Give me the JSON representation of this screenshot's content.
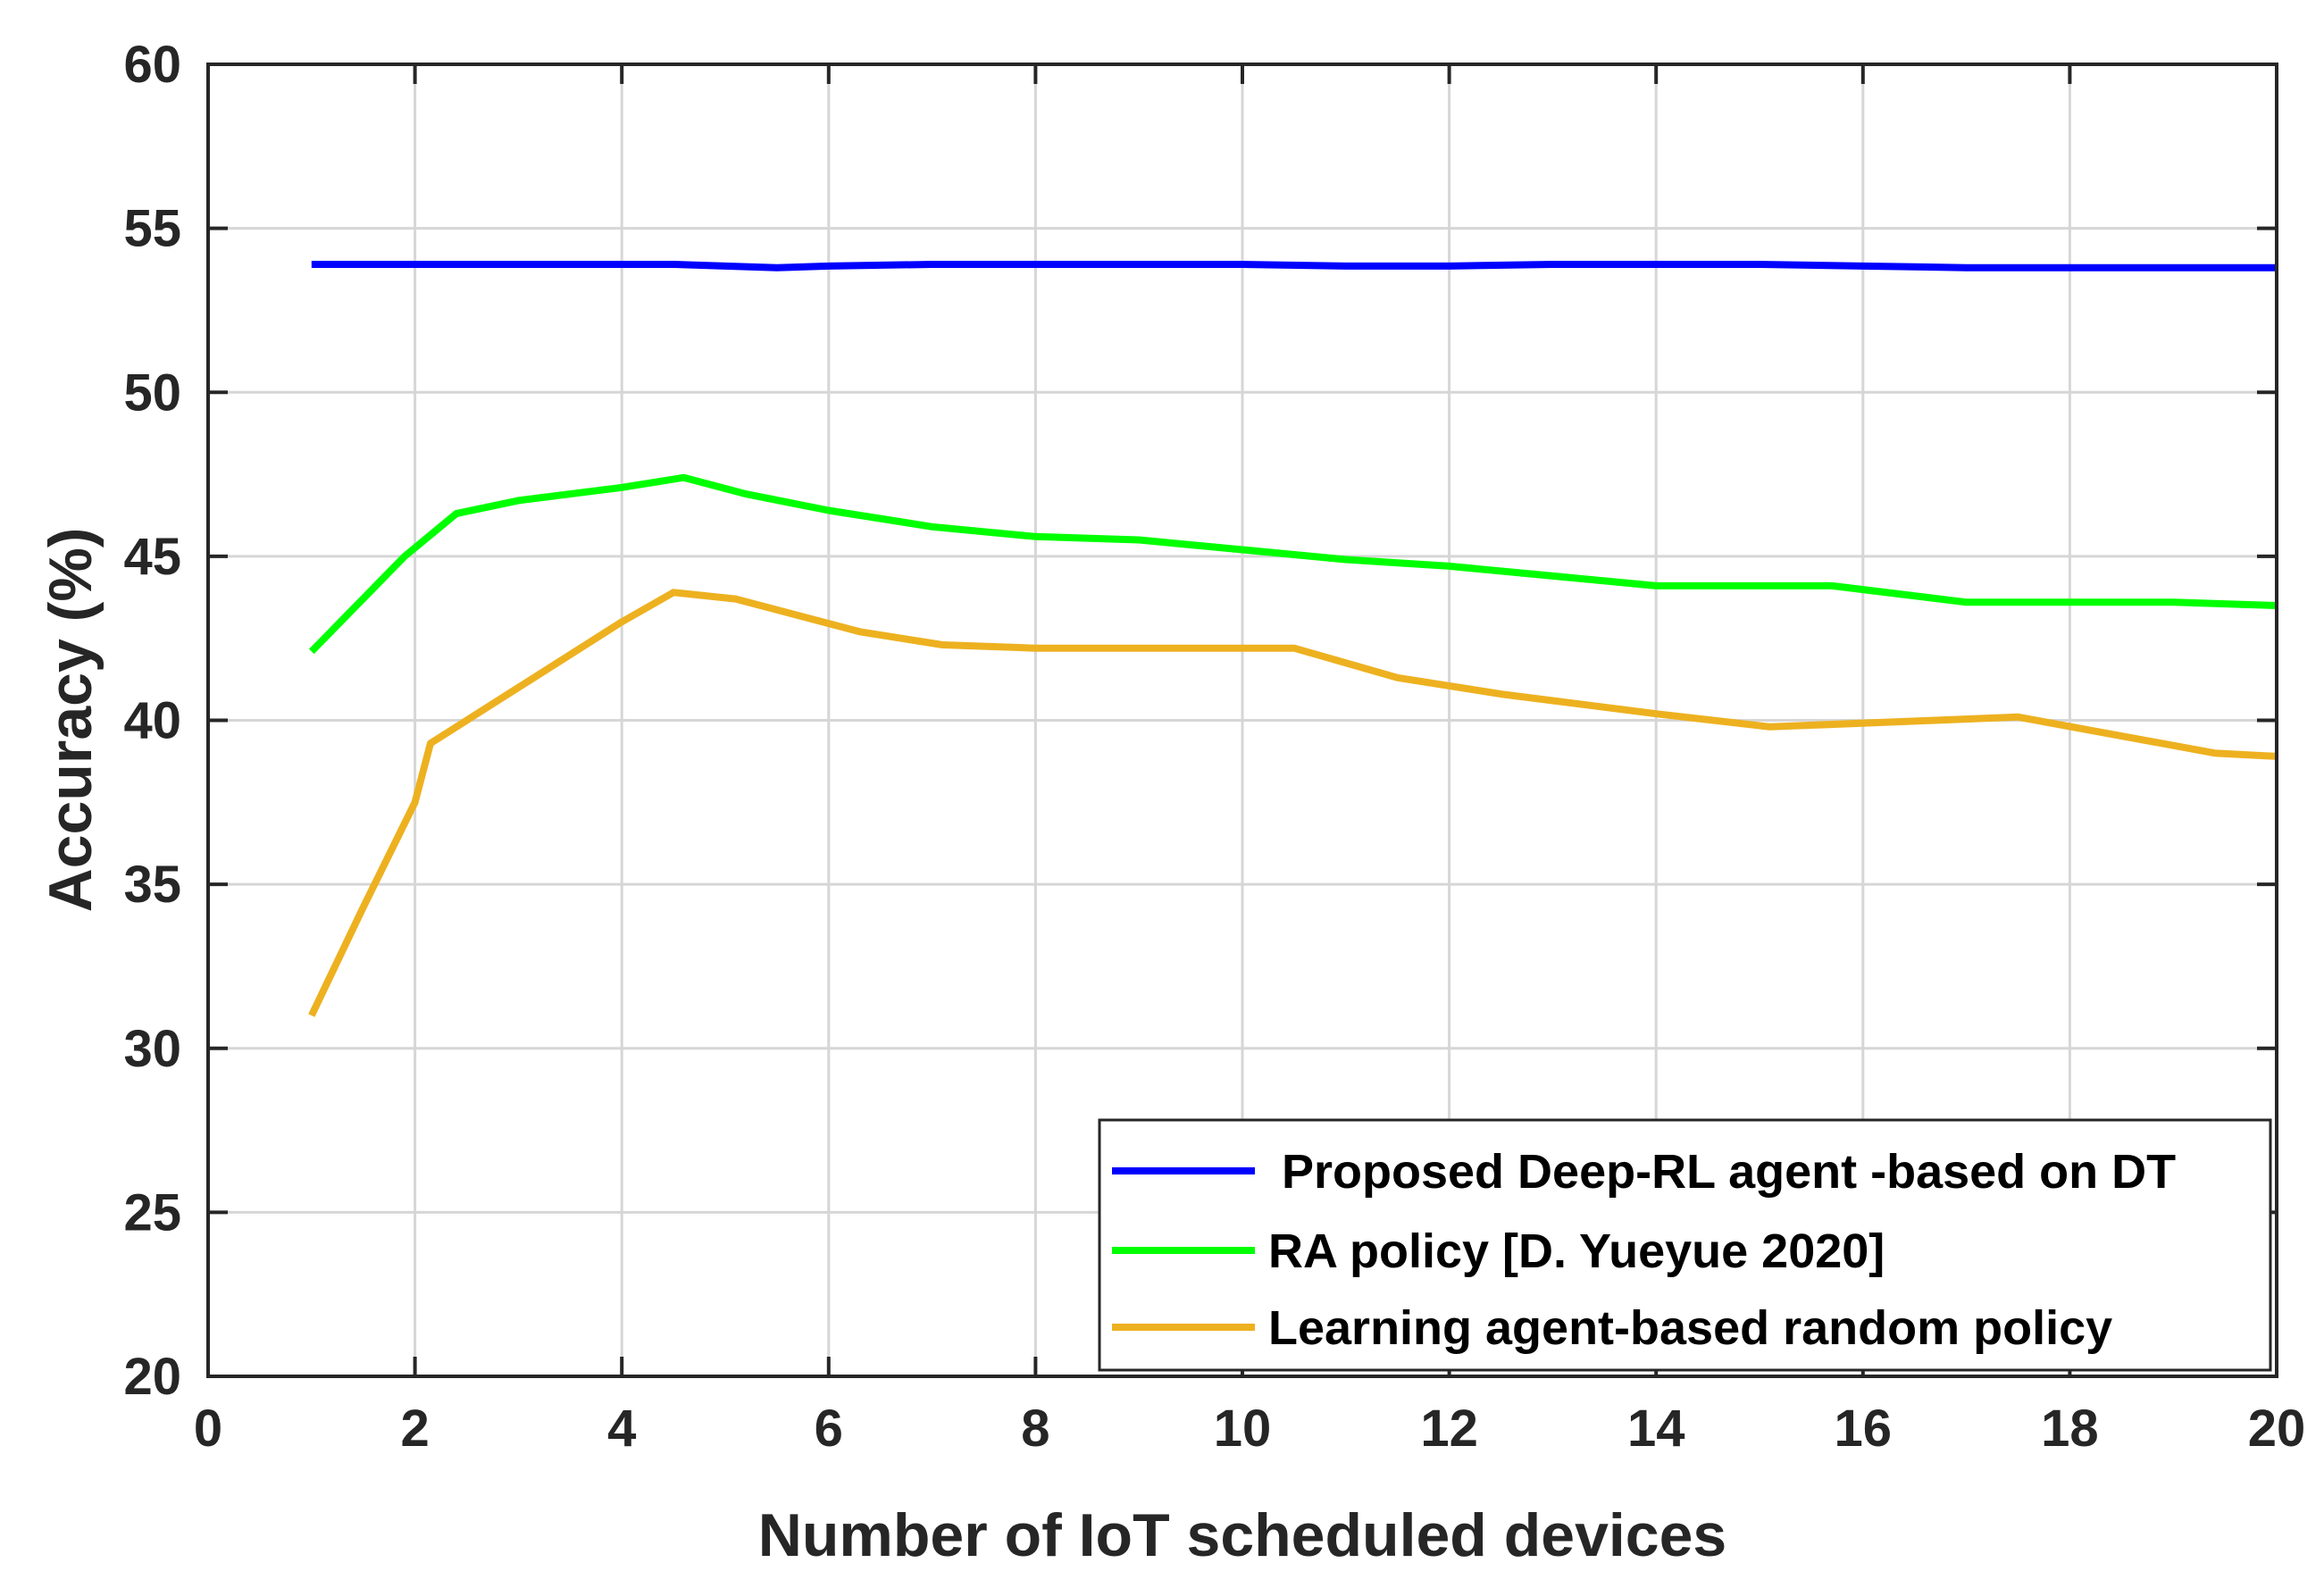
{
  "chart_data": {
    "type": "line",
    "title": "",
    "xlabel": "Number of IoT scheduled devices",
    "ylabel": "Accuracy (%)",
    "xlim": [
      0,
      20
    ],
    "ylim": [
      20,
      60
    ],
    "xticks": [
      0,
      2,
      4,
      6,
      8,
      10,
      12,
      14,
      16,
      18,
      20
    ],
    "yticks": [
      20,
      25,
      30,
      35,
      40,
      45,
      50,
      55,
      60
    ],
    "grid": true,
    "legend_position": "bottom-right",
    "series": [
      {
        "name": "Proposed Deep-RL agent -based on DT",
        "legend_label": " Proposed Deep-RL agent -based on DT",
        "color": "#0000ff",
        "x": [
          1,
          2,
          3,
          4,
          4.5,
          5,
          5.5,
          6,
          7,
          8,
          9,
          10,
          11,
          12,
          13,
          14,
          15,
          16,
          17,
          18,
          19,
          20
        ],
        "y": [
          53.9,
          53.9,
          53.9,
          53.9,
          53.9,
          53.85,
          53.8,
          53.85,
          53.9,
          53.9,
          53.9,
          53.9,
          53.85,
          53.85,
          53.9,
          53.9,
          53.9,
          53.85,
          53.8,
          53.8,
          53.8,
          53.8
        ]
      },
      {
        "name": "RA policy [D. Yueyue 2020]",
        "legend_label": "RA policy [D. Yueyue 2020]",
        "color": "#00ff00",
        "x": [
          1,
          1.9,
          2.4,
          3,
          4,
          4.6,
          5.2,
          6,
          7,
          8,
          9,
          10,
          11,
          12,
          13,
          14,
          15,
          15.7,
          17,
          18,
          19,
          20
        ],
        "y": [
          42.1,
          45,
          46.3,
          46.7,
          47.1,
          47.4,
          46.9,
          46.4,
          45.9,
          45.6,
          45.5,
          45.2,
          44.9,
          44.7,
          44.4,
          44.1,
          44.1,
          44.1,
          43.6,
          43.6,
          43.6,
          43.5
        ]
      },
      {
        "name": "Learning agent-based random policy",
        "legend_label": "Learning agent-based random policy",
        "color": "#edb120",
        "x": [
          1,
          1.5,
          2,
          2.15,
          3,
          4,
          4.5,
          5.1,
          6.3,
          7.1,
          8,
          9,
          10.5,
          11.5,
          12.5,
          14,
          15.1,
          16.7,
          17.5,
          19.4,
          20
        ],
        "y": [
          31,
          34.3,
          37.5,
          39.3,
          41,
          43,
          43.9,
          43.7,
          42.7,
          42.3,
          42.2,
          42.2,
          42.2,
          41.3,
          40.8,
          40.2,
          39.8,
          40,
          40.1,
          39,
          38.9
        ]
      }
    ]
  }
}
